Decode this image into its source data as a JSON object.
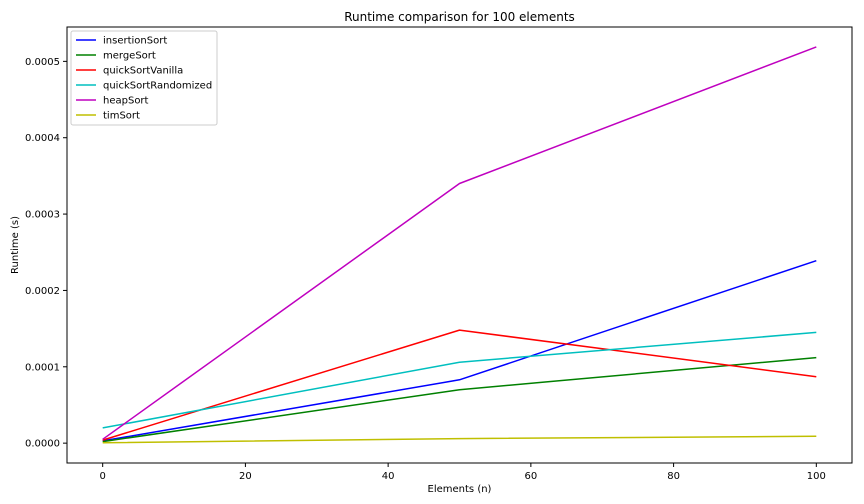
{
  "chart_data": {
    "type": "line",
    "title": "Runtime comparison for 100 elements",
    "xlabel": "Elements (n)",
    "ylabel": "Runtime (s)",
    "x": [
      0,
      50,
      100
    ],
    "xlim": [
      -5,
      105
    ],
    "ylim": [
      -2.6e-05,
      0.000545
    ],
    "xticks": [
      0,
      20,
      40,
      60,
      80,
      100
    ],
    "xtick_labels": [
      "0",
      "20",
      "40",
      "60",
      "80",
      "100"
    ],
    "yticks": [
      0,
      0.0001,
      0.0002,
      0.0003,
      0.0004,
      0.0005
    ],
    "ytick_labels": [
      "0.0000",
      "0.0001",
      "0.0002",
      "0.0003",
      "0.0004",
      "0.0005"
    ],
    "grid": false,
    "legend_position": "top-left",
    "series": [
      {
        "name": "insertionSort",
        "color": "#0000ff",
        "values": [
          3e-06,
          8.3e-05,
          0.000239
        ]
      },
      {
        "name": "mergeSort",
        "color": "#008000",
        "values": [
          2e-06,
          7e-05,
          0.000112
        ]
      },
      {
        "name": "quickSortVanilla",
        "color": "#ff0000",
        "values": [
          4e-06,
          0.000148,
          8.7e-05
        ]
      },
      {
        "name": "quickSortRandomized",
        "color": "#00bfbf",
        "values": [
          2e-05,
          0.000106,
          0.000145
        ]
      },
      {
        "name": "heapSort",
        "color": "#bf00bf",
        "values": [
          5e-06,
          0.00034,
          0.000519
        ]
      },
      {
        "name": "timSort",
        "color": "#bfbf00",
        "values": [
          5e-07,
          6e-06,
          9e-06
        ]
      }
    ]
  }
}
